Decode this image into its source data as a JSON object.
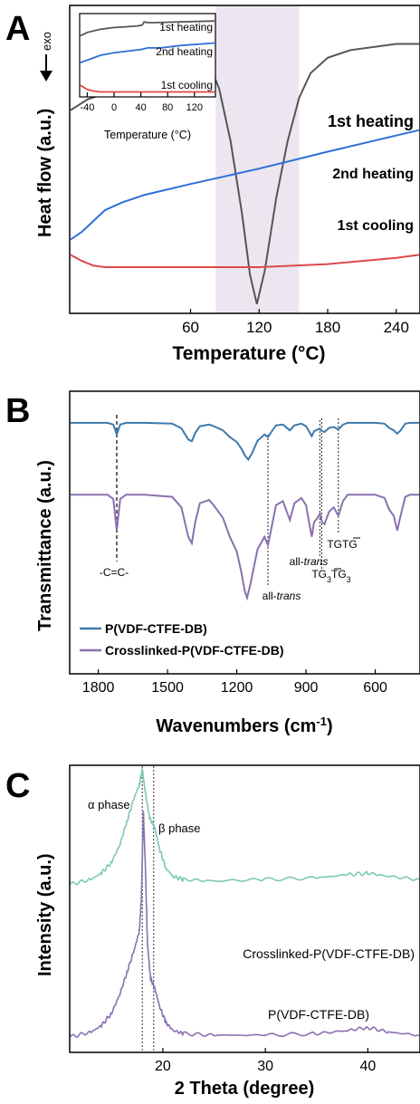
{
  "panels": {
    "A": {
      "letter": "A",
      "exo": "exo",
      "ylabel": "Heat flow (a.u.)",
      "xlabel": "Temperature (°C)"
    },
    "B": {
      "letter": "B",
      "ylabel": "Transmittance (a.u.)",
      "xlabel_main": "Wavenumbers (cm",
      "xlabel_sup": "-1",
      "xlabel_close": ")"
    },
    "C": {
      "letter": "C",
      "ylabel": "Intensity (a.u.)",
      "xlabel": "2 Theta (degree)"
    }
  },
  "colors": {
    "gray": "#555555",
    "blue": "#2e6fd8",
    "red": "#e04848",
    "steel": "#3d7aab",
    "purple": "#8a70b0",
    "teal": "#7ec8b6",
    "band": "#ede6f0"
  },
  "chart_data": [
    {
      "type": "line",
      "xlim": [
        -45,
        260
      ],
      "xticks": [
        "60",
        "120",
        "180",
        "240"
      ],
      "xtick_values": [
        60,
        120,
        180,
        240
      ],
      "highlight_band": [
        82,
        155
      ],
      "series": [
        {
          "name": "1st heating",
          "x": [
            -45,
            -30,
            -10,
            10,
            30,
            40,
            60,
            75,
            85,
            95,
            105,
            112,
            118,
            125,
            135,
            145,
            155,
            165,
            180,
            200,
            240,
            260
          ],
          "y": [
            0.32,
            0.39,
            0.44,
            0.48,
            0.53,
            0.64,
            0.69,
            0.64,
            0.46,
            0.12,
            -0.35,
            -0.75,
            -0.94,
            -0.72,
            -0.25,
            0.12,
            0.4,
            0.56,
            0.66,
            0.71,
            0.75,
            0.75
          ]
        },
        {
          "name": "2nd heating",
          "x": [
            -45,
            -35,
            -25,
            -15,
            0,
            20,
            60,
            120,
            180,
            260
          ],
          "y": [
            -0.52,
            -0.47,
            -0.4,
            -0.33,
            -0.28,
            -0.23,
            -0.16,
            -0.06,
            0.05,
            0.19
          ]
        },
        {
          "name": "1st cooling",
          "x": [
            -45,
            -35,
            -25,
            -15,
            0,
            60,
            120,
            180,
            240,
            260
          ],
          "y": [
            -0.62,
            -0.66,
            -0.69,
            -0.7,
            -0.7,
            -0.7,
            -0.7,
            -0.68,
            -0.64,
            -0.62
          ]
        }
      ],
      "inset": {
        "xlim": [
          -50,
          150
        ],
        "xticks": [
          "-40",
          "0",
          "40",
          "80",
          "120"
        ],
        "xtick_values": [
          -40,
          0,
          40,
          80,
          120
        ],
        "xlabel": "Temperature (°C)",
        "series": [
          {
            "name": "1st heating",
            "x": [
              -50,
              -40,
              -20,
              0,
              20,
              35,
              42,
              45,
              50,
              60,
              100,
              150
            ],
            "y": [
              0.74,
              0.78,
              0.82,
              0.84,
              0.85,
              0.86,
              0.87,
              0.91,
              0.9,
              0.9,
              0.91,
              0.92
            ]
          },
          {
            "name": "2nd heating",
            "x": [
              -50,
              -40,
              -20,
              0,
              20,
              40,
              50,
              70,
              100,
              150
            ],
            "y": [
              0.41,
              0.44,
              0.5,
              0.53,
              0.55,
              0.57,
              0.59,
              0.59,
              0.62,
              0.65
            ]
          },
          {
            "name": "1st cooling",
            "x": [
              -50,
              -40,
              -30,
              -20,
              0,
              50,
              100,
              150
            ],
            "y": [
              0.13,
              0.08,
              0.06,
              0.05,
              0.05,
              0.05,
              0.05,
              0.05
            ]
          }
        ]
      }
    },
    {
      "type": "line",
      "xlim": [
        1920,
        410
      ],
      "xticks": [
        "1800",
        "1500",
        "1200",
        "900",
        "600"
      ],
      "xtick_values": [
        1800,
        1500,
        1200,
        900,
        600
      ],
      "legend": [
        "P(VDF-CTFE-DB)",
        "Crosslinked-P(VDF-CTFE-DB)"
      ],
      "reference_lines": [
        1720,
        1065,
        840,
        832,
        760
      ],
      "annotations": [
        {
          "text": "-C=C-",
          "x": 1720
        },
        {
          "text": "all-trans",
          "x": 1065
        },
        {
          "text": "all-trans",
          "x": 840
        },
        {
          "text": "TGTG",
          "x": 760
        },
        {
          "text": "TG3TG3",
          "x": 832
        }
      ],
      "series": [
        {
          "name": "P(VDF-CTFE-DB)",
          "x": [
            1920,
            1760,
            1735,
            1720,
            1705,
            1680,
            1600,
            1480,
            1440,
            1410,
            1395,
            1380,
            1360,
            1320,
            1300,
            1260,
            1230,
            1200,
            1180,
            1165,
            1150,
            1135,
            1110,
            1080,
            1065,
            1050,
            1030,
            1000,
            970,
            950,
            920,
            900,
            885,
            875,
            865,
            850,
            840,
            830,
            820,
            800,
            780,
            760,
            740,
            720,
            700,
            650,
            600,
            560,
            540,
            520,
            505,
            490,
            470,
            450,
            430,
            410
          ],
          "y": [
            0.98,
            0.98,
            0.94,
            0.7,
            0.94,
            0.98,
            0.98,
            0.96,
            0.85,
            0.58,
            0.54,
            0.74,
            0.9,
            0.94,
            0.9,
            0.8,
            0.64,
            0.52,
            0.36,
            0.2,
            0.1,
            0.24,
            0.55,
            0.7,
            0.64,
            0.76,
            0.92,
            0.94,
            0.8,
            0.92,
            0.96,
            0.9,
            0.76,
            0.66,
            0.78,
            0.82,
            0.84,
            0.78,
            0.76,
            0.86,
            0.88,
            0.82,
            0.94,
            0.98,
            0.98,
            0.98,
            0.98,
            0.96,
            0.86,
            0.8,
            0.72,
            0.8,
            0.96,
            0.98,
            0.98,
            0.98
          ]
        },
        {
          "name": "Crosslinked-P(VDF-CTFE-DB)",
          "x": [
            1920,
            1760,
            1735,
            1720,
            1705,
            1680,
            1600,
            1480,
            1440,
            1410,
            1395,
            1380,
            1360,
            1320,
            1300,
            1260,
            1230,
            1200,
            1180,
            1165,
            1155,
            1140,
            1110,
            1080,
            1065,
            1050,
            1030,
            1000,
            970,
            950,
            920,
            900,
            885,
            875,
            865,
            850,
            840,
            830,
            820,
            800,
            780,
            760,
            740,
            720,
            700,
            650,
            600,
            560,
            540,
            520,
            505,
            490,
            470,
            450,
            430,
            410
          ],
          "y": [
            0.98,
            0.98,
            0.94,
            0.64,
            0.94,
            0.98,
            0.98,
            0.96,
            0.86,
            0.58,
            0.52,
            0.72,
            0.9,
            0.93,
            0.88,
            0.76,
            0.58,
            0.44,
            0.24,
            0.06,
            0.0,
            0.14,
            0.46,
            0.58,
            0.5,
            0.66,
            0.88,
            0.92,
            0.74,
            0.9,
            0.95,
            0.88,
            0.7,
            0.58,
            0.72,
            0.76,
            0.8,
            0.72,
            0.7,
            0.82,
            0.86,
            0.78,
            0.92,
            0.98,
            0.98,
            0.98,
            0.98,
            0.95,
            0.84,
            0.78,
            0.64,
            0.78,
            0.96,
            0.98,
            0.98,
            0.98
          ]
        }
      ]
    },
    {
      "type": "line",
      "xlim": [
        11,
        45
      ],
      "xticks": [
        "20",
        "30",
        "40"
      ],
      "xtick_values": [
        20,
        30,
        40
      ],
      "reference_lines": [
        18.0,
        19.1
      ],
      "annotations": [
        {
          "text": "α phase",
          "x": 18.0
        },
        {
          "text": "β phase",
          "x": 19.1
        }
      ],
      "series": [
        {
          "name": "Crosslinked-P(VDF-CTFE-DB)",
          "x": [
            11,
            13,
            14,
            15,
            15.8,
            16.5,
            17.2,
            17.7,
            18.0,
            18.3,
            18.7,
            19.2,
            19.7,
            20.3,
            21,
            22,
            25,
            30,
            35,
            38,
            40,
            42,
            45
          ],
          "y": [
            1.0,
            1.03,
            1.07,
            1.14,
            1.25,
            1.4,
            1.55,
            1.63,
            1.73,
            1.58,
            1.42,
            1.36,
            1.22,
            1.1,
            1.05,
            1.03,
            1.02,
            1.03,
            1.04,
            1.06,
            1.07,
            1.05,
            1.03
          ]
        },
        {
          "name": "P(VDF-CTFE-DB)",
          "x": [
            11,
            13,
            14,
            15,
            15.8,
            16.5,
            17.2,
            17.7,
            17.9,
            18.1,
            18.3,
            18.5,
            18.8,
            19.2,
            19.7,
            20.3,
            21,
            22,
            25,
            30,
            35,
            38,
            40,
            42,
            45
          ],
          "y": [
            0.03,
            0.06,
            0.1,
            0.18,
            0.3,
            0.44,
            0.58,
            0.7,
            0.9,
            1.46,
            1.1,
            0.62,
            0.4,
            0.34,
            0.22,
            0.12,
            0.07,
            0.05,
            0.04,
            0.04,
            0.05,
            0.07,
            0.09,
            0.06,
            0.04
          ]
        }
      ]
    }
  ]
}
